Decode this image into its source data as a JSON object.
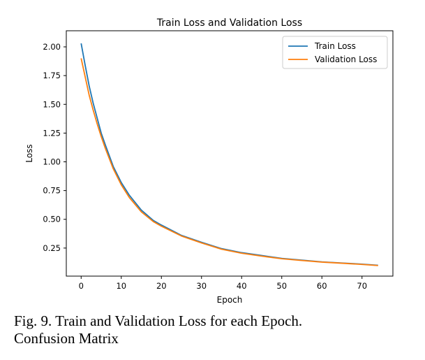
{
  "chart_data": {
    "type": "line",
    "title": "Train Loss and Validation Loss",
    "xlabel": "Epoch",
    "ylabel": "Loss",
    "xlim": [
      -3.7,
      77.7
    ],
    "ylim": [
      0.006,
      2.14
    ],
    "xticks": [
      0,
      10,
      20,
      30,
      40,
      50,
      60,
      70
    ],
    "yticks": [
      0.25,
      0.5,
      0.75,
      1.0,
      1.25,
      1.5,
      1.75,
      2.0
    ],
    "xtick_labels": [
      "0",
      "10",
      "20",
      "30",
      "40",
      "50",
      "60",
      "70"
    ],
    "ytick_labels": [
      "0.25",
      "0.50",
      "0.75",
      "1.00",
      "1.25",
      "1.50",
      "1.75",
      "2.00"
    ],
    "grid": false,
    "legend_position": "top-right",
    "series": [
      {
        "name": "Train Loss",
        "color": "#1f77b4",
        "x": [
          0,
          1,
          2,
          3,
          4,
          5,
          6,
          8,
          10,
          12,
          15,
          18,
          20,
          25,
          30,
          35,
          40,
          45,
          50,
          55,
          60,
          65,
          70,
          74
        ],
        "values": [
          2.03,
          1.84,
          1.66,
          1.51,
          1.38,
          1.25,
          1.15,
          0.96,
          0.82,
          0.71,
          0.58,
          0.49,
          0.45,
          0.36,
          0.3,
          0.245,
          0.21,
          0.185,
          0.16,
          0.145,
          0.13,
          0.12,
          0.11,
          0.1
        ]
      },
      {
        "name": "Validation Loss",
        "color": "#ff7f0e",
        "x": [
          0,
          1,
          2,
          3,
          4,
          5,
          6,
          8,
          10,
          12,
          15,
          18,
          20,
          25,
          30,
          35,
          40,
          45,
          50,
          55,
          60,
          65,
          70,
          74
        ],
        "values": [
          1.9,
          1.74,
          1.58,
          1.45,
          1.33,
          1.22,
          1.12,
          0.94,
          0.8,
          0.69,
          0.565,
          0.48,
          0.44,
          0.355,
          0.295,
          0.24,
          0.205,
          0.18,
          0.157,
          0.142,
          0.128,
          0.118,
          0.108,
          0.098
        ]
      }
    ]
  },
  "caption": {
    "line1": "Fig. 9. Train and Validation Loss for each Epoch.",
    "line2": "Confusion Matrix"
  }
}
